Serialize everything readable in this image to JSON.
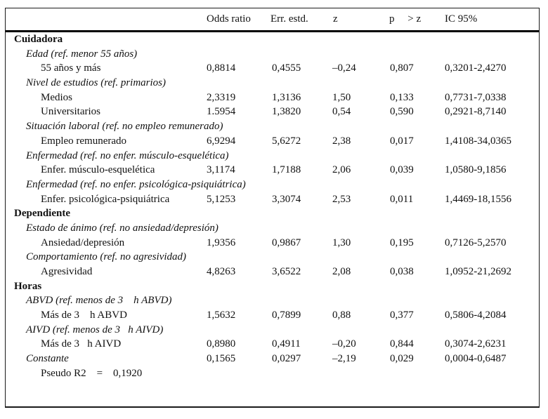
{
  "table": {
    "columns": {
      "odds_ratio": "Odds ratio",
      "std_err": "Err. estd.",
      "z": "z",
      "p_gt_z": "p     > z",
      "ci_95": "IC 95%"
    },
    "rows": [
      {
        "type": "section",
        "label": "Cuidadora"
      },
      {
        "type": "subsection",
        "label": "Edad (ref. menor 55 años)"
      },
      {
        "type": "data",
        "label": "55 años y más",
        "odds": "0,8814",
        "err": "0,4555",
        "z": "–0,24",
        "p": "0,807",
        "ic": "0,3201-2,4270"
      },
      {
        "type": "subsection",
        "label": "Nivel de estudios (ref. primarios)"
      },
      {
        "type": "data",
        "label": "Medios",
        "odds": "2,3319",
        "err": "1,3136",
        "z": "1,50",
        "p": "0,133",
        "ic": "0,7731-7,0338"
      },
      {
        "type": "data",
        "label": "Universitarios",
        "odds": "1.5954",
        "err": "1,3820",
        "z": "0,54",
        "p": "0,590",
        "ic": "0,2921-8,7140"
      },
      {
        "type": "subsection",
        "label": "Situación laboral (ref. no empleo remunerado)"
      },
      {
        "type": "data",
        "label": "Empleo remunerado",
        "odds": "6,9294",
        "err": "5,6272",
        "z": "2,38",
        "p": "0,017",
        "ic": "1,4108-34,0365"
      },
      {
        "type": "subsection",
        "label": "Enfermedad (ref. no enfer. músculo-esquelética)"
      },
      {
        "type": "data",
        "label": "Enfer. músculo-esquelética",
        "odds": "3,1174",
        "err": "1,7188",
        "z": "2,06",
        "p": "0,039",
        "ic": "1,0580-9,1856"
      },
      {
        "type": "subsection",
        "label": "Enfermedad (ref. no enfer. psicológica-psiquiátrica)"
      },
      {
        "type": "data",
        "label": "Enfer. psicológica-psiquiátrica",
        "odds": "5,1253",
        "err": "3,3074",
        "z": "2,53",
        "p": "0,011",
        "ic": "1,4469-18,1556"
      },
      {
        "type": "section",
        "label": "Dependiente"
      },
      {
        "type": "subsection",
        "label": "Estado de ánimo (ref. no ansiedad/depresión)"
      },
      {
        "type": "data",
        "label": "Ansiedad/depresión",
        "odds": "1,9356",
        "err": "0,9867",
        "z": "1,30",
        "p": "0,195",
        "ic": "0,7126-5,2570"
      },
      {
        "type": "subsection",
        "label": "Comportamiento (ref. no agresividad)"
      },
      {
        "type": "data",
        "label": "Agresividad",
        "odds": "4,8263",
        "err": "3,6522",
        "z": "2,08",
        "p": "0,038",
        "ic": "1,0952-21,2692"
      },
      {
        "type": "section",
        "label": "Horas"
      },
      {
        "type": "subsection",
        "label": "ABVD (ref. menos de 3    h ABVD)"
      },
      {
        "type": "data",
        "label": "Más de 3    h ABVD",
        "odds": "1,5632",
        "err": "0,7899",
        "z": "0,88",
        "p": "0,377",
        "ic": "0,5806-4,2084"
      },
      {
        "type": "subsection",
        "label": "AIVD (ref. menos de 3   h AIVD)"
      },
      {
        "type": "data",
        "label": "Más de 3   h AIVD",
        "odds": "0,8980",
        "err": "0,4911",
        "z": "–0,20",
        "p": "0,844",
        "ic": "0,3074-2,6231"
      },
      {
        "type": "constante",
        "label": "Constante",
        "odds": "0,1565",
        "err": "0,0297",
        "z": "–2,19",
        "p": "0,029",
        "ic": "0,0004-0,6487"
      },
      {
        "type": "pseudo",
        "label": "Pseudo R2    =    0,1920"
      }
    ]
  }
}
